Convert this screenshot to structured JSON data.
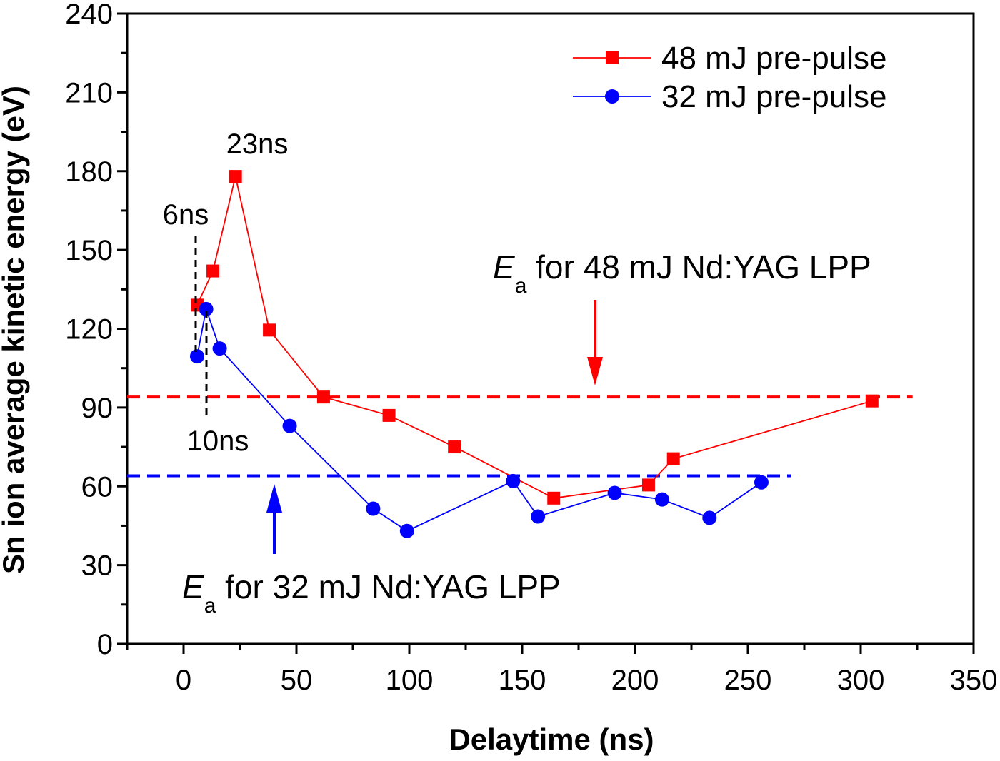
{
  "chart_data": {
    "type": "line",
    "xlabel": "Delaytime (ns)",
    "ylabel": "Sn ion average kinetic energy (eV)",
    "xlim": [
      -25,
      350
    ],
    "ylim": [
      0,
      240
    ],
    "xticks": [
      0,
      50,
      100,
      150,
      200,
      250,
      300,
      350
    ],
    "yticks": [
      0,
      30,
      60,
      90,
      120,
      150,
      180,
      210,
      240
    ],
    "grid": false,
    "legend_position": "top-right",
    "series": [
      {
        "name": "48 mJ pre-pulse",
        "color": "#ff0000",
        "marker": "square",
        "x": [
          6,
          13,
          23,
          38,
          62,
          91,
          120,
          164,
          206,
          217,
          305
        ],
        "y": [
          129,
          142,
          178,
          119.5,
          94,
          87,
          75,
          55.5,
          60.5,
          70.5,
          92.5
        ]
      },
      {
        "name": "32 mJ pre-pulse",
        "color": "#0000ff",
        "marker": "circle",
        "x": [
          6,
          10,
          16,
          47,
          84,
          99,
          146,
          157,
          191,
          212,
          233,
          256
        ],
        "y": [
          109.5,
          127.5,
          112.5,
          83,
          51.5,
          43,
          62,
          48.5,
          57.5,
          55,
          48,
          61.5
        ]
      }
    ],
    "reference_lines": [
      {
        "y": 94,
        "x_range": [
          -25,
          323
        ],
        "color": "#ff0000",
        "style": "dashed"
      },
      {
        "y": 64,
        "x_range": [
          -25,
          269
        ],
        "color": "#0000ff",
        "style": "dashed"
      }
    ],
    "annotations": {
      "peak_label": "23ns",
      "label_6ns": "6ns",
      "label_10ns": "10ns",
      "ea_48_symbol": "E",
      "ea_48_sub": "a",
      "ea_48_text": " for 48 mJ Nd:YAG LPP",
      "ea_32_symbol": "E",
      "ea_32_sub": "a",
      "ea_32_text": " for 32 mJ Nd:YAG LPP"
    }
  }
}
